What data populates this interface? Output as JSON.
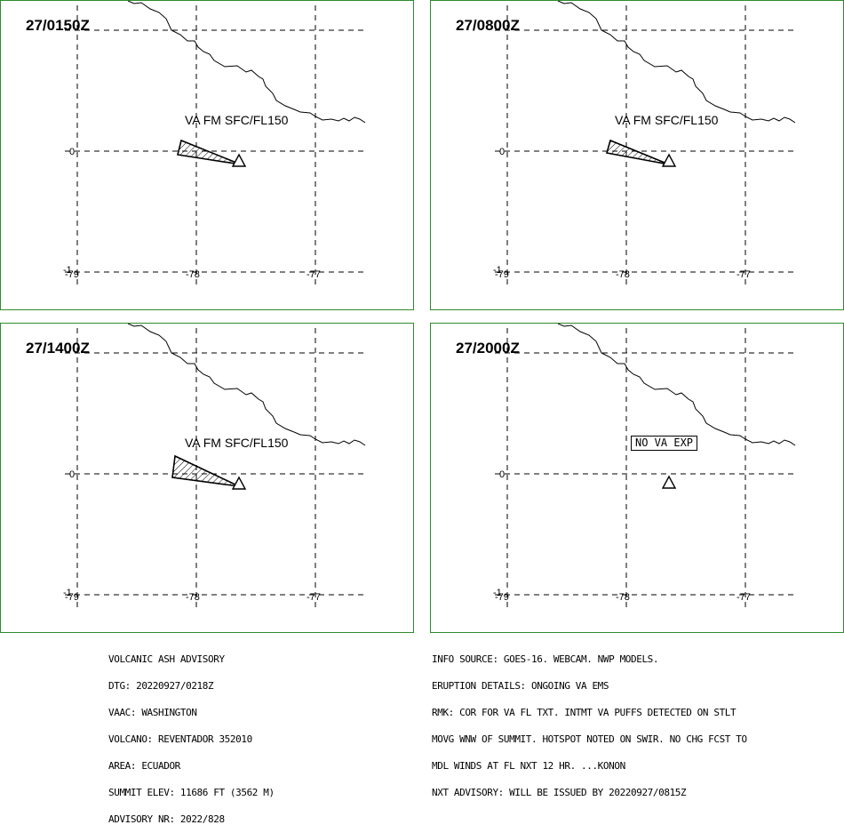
{
  "panels": [
    {
      "time": "27/0150Z",
      "label": "VA FM SFC/FL150"
    },
    {
      "time": "27/0800Z",
      "label": "VA FM SFC/FL150"
    },
    {
      "time": "27/1400Z",
      "label": "VA FM SFC/FL150"
    },
    {
      "time": "27/2000Z",
      "label": "NO VA EXP"
    }
  ],
  "axis": {
    "lat_label": "0",
    "lon_labels": [
      "-79",
      "-78",
      "-77"
    ],
    "corner_label": "-1"
  },
  "advisory_left": [
    "VOLCANIC ASH ADVISORY",
    "DTG: 20220927/0218Z",
    "VAAC: WASHINGTON",
    "VOLCANO: REVENTADOR 352010",
    "AREA: ECUADOR",
    "SUMMIT ELEV: 11686 FT (3562 M)",
    "ADVISORY NR: 2022/828"
  ],
  "advisory_right": [
    "INFO SOURCE: GOES-16. WEBCAM. NWP MODELS.",
    "ERUPTION DETAILS: ONGOING VA EMS",
    "RMK: COR FOR VA FL TXT. INTMT VA PUFFS DETECTED ON STLT",
    "MOVG WNW OF SUMMIT. HOTSPOT NOTED ON SWIR. NO CHG FCST TO",
    "MDL WINDS AT FL NXT 12 HR. ...KONON",
    "NXT ADVISORY: WILL BE ISSUED BY 20220927/0815Z"
  ],
  "colors": {
    "frame": "#2e8b2e",
    "line": "#000000"
  }
}
